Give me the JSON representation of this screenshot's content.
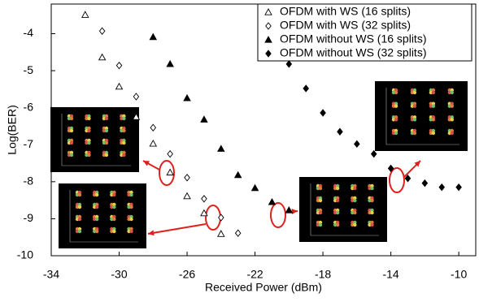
{
  "chart_data": {
    "type": "scatter",
    "x_label": "Received Power (dBm)",
    "y_label": "Log(BER)",
    "xlim": [
      -34,
      -9
    ],
    "ylim": [
      -10,
      -3.2
    ],
    "xticks": [
      -34,
      -30,
      -26,
      -22,
      -18,
      -14,
      -10
    ],
    "yticks": [
      -10,
      -9,
      -8,
      -7,
      -6,
      -5,
      -4
    ],
    "legend": "top-right",
    "series": [
      {
        "name": "OFDM with WS (16 splits)",
        "marker": "triangle-open",
        "color": "#000000",
        "x": [
          -32,
          -31,
          -30,
          -29,
          -28,
          -27,
          -26,
          -25,
          -24
        ],
        "values": [
          -3.49,
          -4.64,
          -5.43,
          -6.25,
          -6.97,
          -7.75,
          -8.39,
          -8.85,
          -9.41
        ]
      },
      {
        "name": "OFDM with WS (32 splits)",
        "marker": "diamond-open",
        "color": "#000000",
        "x": [
          -31,
          -30,
          -29,
          -28,
          -27,
          -26,
          -25,
          -24,
          -23
        ],
        "values": [
          -3.93,
          -4.86,
          -5.7,
          -6.54,
          -7.25,
          -7.89,
          -8.46,
          -8.97,
          -9.39
        ]
      },
      {
        "name": "OFDM without WS (16 splits)",
        "marker": "triangle",
        "color": "#000000",
        "x": [
          -28,
          -27,
          -26,
          -25,
          -24,
          -23,
          -22,
          -21,
          -20
        ],
        "values": [
          -4.09,
          -4.82,
          -5.74,
          -6.32,
          -7.11,
          -7.82,
          -8.17,
          -8.55,
          -8.77
        ]
      },
      {
        "name": "OFDM without WS (32 splits)",
        "marker": "diamond",
        "color": "#000000",
        "x": [
          -20,
          -19,
          -18,
          -17,
          -16,
          -15,
          -14,
          -13,
          -12,
          -11,
          -10
        ],
        "values": [
          -4.82,
          -5.48,
          -6.14,
          -6.65,
          -6.98,
          -7.25,
          -7.64,
          -7.91,
          -8.04,
          -8.15,
          -8.15
        ]
      }
    ]
  }
}
